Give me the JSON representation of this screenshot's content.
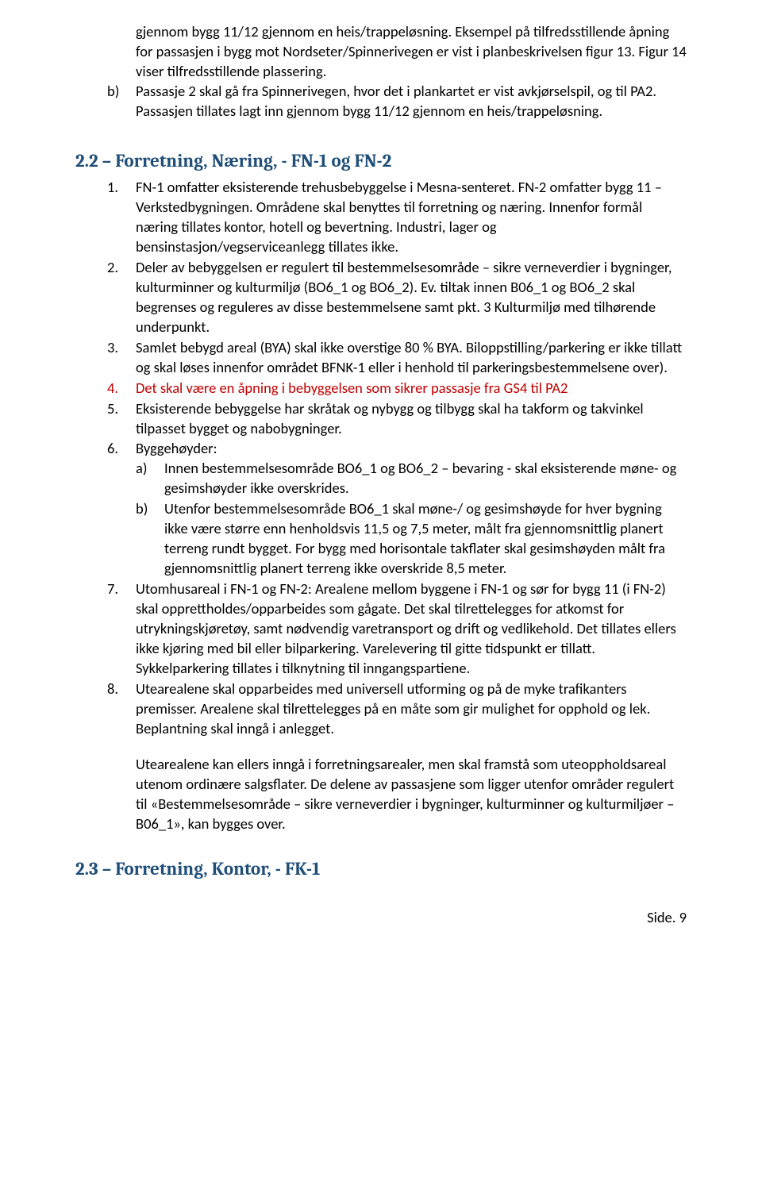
{
  "intro_p1": "gjennom bygg 11/12 gjennom en heis/trappeløsning. Eksempel på tilfredsstillende åpning for passasjen i bygg mot Nordseter/Spinnerivegen er vist i planbeskrivelsen figur 13. Figur 14 viser tilfredsstillende plassering.",
  "intro_b_marker": "b)",
  "intro_b": "Passasje 2 skal gå fra Spinnerivegen, hvor det i plankartet er vist avkjørselspil, og til PA2. Passasjen tillates lagt inn gjennom bygg 11/12 gjennom en heis/trappeløsning.",
  "section22_heading": "2.2   – Forretning, Næring, - FN-1 og FN-2",
  "s22": [
    {
      "n": "1.",
      "t": "FN-1 omfatter eksisterende trehusbebyggelse i Mesna-senteret. FN-2 omfatter bygg 11 – Verkstedbygningen. Områdene skal benyttes til forretning og næring. Innenfor formål næring tillates kontor, hotell og bevertning. Industri, lager og bensinstasjon/vegserviceanlegg tillates ikke."
    },
    {
      "n": "2.",
      "t": "Deler av bebyggelsen er regulert til bestemmelsesområde – sikre verneverdier i bygninger, kulturminner og kulturmiljø (BO6_1 og BO6_2). Ev. tiltak innen B06_1 og BO6_2 skal begrenses og reguleres av disse bestemmelsene samt pkt. 3 Kulturmiljø med tilhørende underpunkt."
    },
    {
      "n": "3.",
      "t": "Samlet bebygd areal (BYA) skal ikke overstige 80 % BYA. Biloppstilling/parkering er ikke tillatt og skal løses innenfor området BFNK-1 eller i henhold til parkeringsbestemmelsene over)."
    },
    {
      "n": "4.",
      "t": "Det skal være en åpning i bebyggelsen som sikrer passasje fra GS4 til PA2",
      "red": true
    },
    {
      "n": "5.",
      "t": "Eksisterende bebyggelse har skråtak og nybygg og tilbygg skal ha takform og takvinkel tilpasset bygget og nabobygninger."
    },
    {
      "n": "6.",
      "t": "Byggehøyder:"
    }
  ],
  "s22_6_a_marker": "a)",
  "s22_6_a": "Innen bestemmelsesområde BO6_1 og BO6_2 – bevaring - skal eksisterende møne- og gesimshøyder ikke overskrides.",
  "s22_6_b_marker": "b)",
  "s22_6_b": "Utenfor bestemmelsesområde BO6_1 skal møne-/ og gesimshøyde for hver bygning ikke være større enn henholdsvis 11,5 og 7,5 meter, målt fra gjennomsnittlig planert terreng rundt bygget. For bygg med horisontale takflater skal gesimshøyden målt fra gjennomsnittlig planert terreng ikke overskride 8,5 meter.",
  "s22_7_n": "7.",
  "s22_7": "Utomhusareal i FN-1 og FN-2: Arealene mellom byggene i FN-1 og sør for bygg 11 (i FN-2) skal opprettholdes/opparbeides som gågate. Det skal tilrettelegges for atkomst for utrykningskjøretøy, samt nødvendig varetransport og drift og vedlikehold. Det tillates ellers ikke kjøring med bil eller bilparkering. Varelevering til gitte tidspunkt er tillatt. Sykkelparkering tillates i tilknytning til inngangspartiene.",
  "s22_8_n": "8.",
  "s22_8_p1": "Utearealene skal opparbeides med universell utforming og på de myke trafikanters premisser. Arealene skal tilrettelegges på en måte som gir mulighet for opphold og lek. Beplantning skal inngå i anlegget.",
  "s22_8_p2": "Utearealene kan ellers inngå i forretningsarealer, men skal framstå som uteoppholdsareal utenom ordinære salgsflater. De delene av passasjene som ligger utenfor områder regulert til «Bestemmelsesområde – sikre verneverdier i bygninger, kulturminner og kulturmiljøer – B06_1», kan bygges over.",
  "section23_heading": "2.3 – Forretning, Kontor, - FK-1",
  "footer": "Side. 9"
}
